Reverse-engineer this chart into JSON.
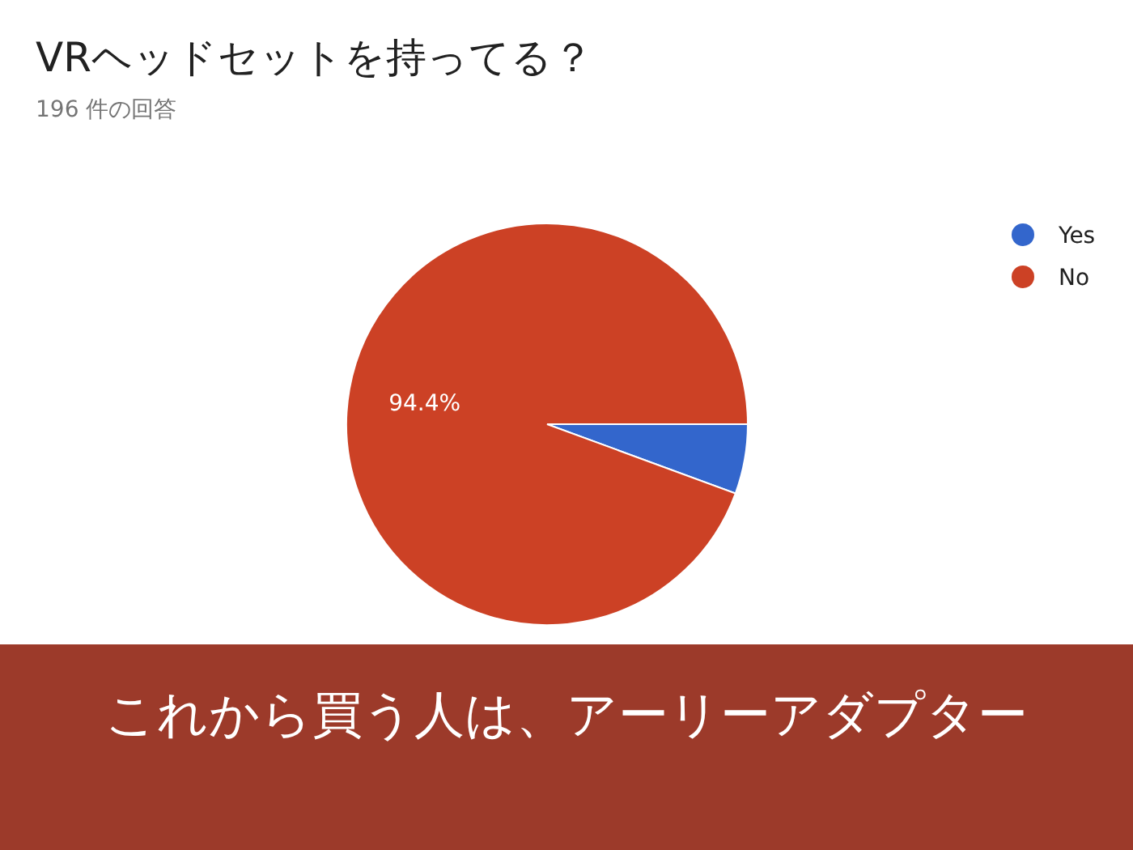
{
  "chart_data": {
    "type": "pie",
    "title": "VRヘッドセットを持ってる？",
    "subtitle": "196 件の回答",
    "categories": [
      "Yes",
      "No"
    ],
    "values": [
      5.6,
      94.4
    ],
    "colors": [
      "#3366cc",
      "#cc4125"
    ],
    "value_labels": [
      null,
      "94.4%"
    ],
    "legend": "top right",
    "annotations": [
      "これから買う人は、アーリーアダプター"
    ]
  }
}
